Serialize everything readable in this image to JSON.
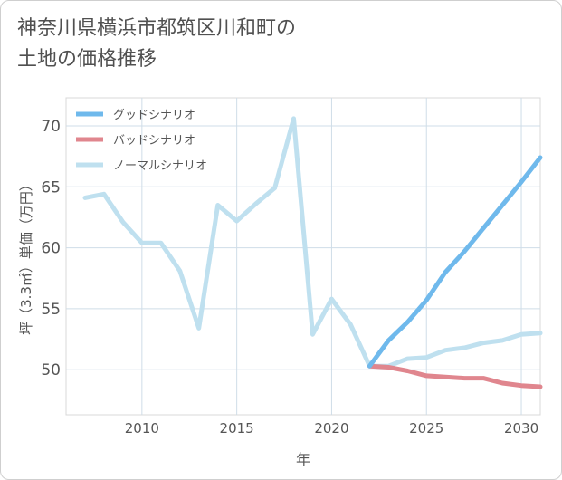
{
  "title_line1": "神奈川県横浜市都筑区川和町の",
  "title_line2": "土地の価格推移",
  "chart_data": {
    "type": "line",
    "title": "神奈川県横浜市都筑区川和町の土地の価格推移",
    "xlabel": "年",
    "ylabel": "坪（3.3㎡）単価（万円）",
    "xlim": [
      2006,
      2031
    ],
    "ylim": [
      46.3,
      72.3
    ],
    "xticks": [
      2010,
      2015,
      2020,
      2025,
      2030
    ],
    "yticks": [
      50,
      55,
      60,
      65,
      70
    ],
    "grid": true,
    "legend_position": "top-left",
    "series": [
      {
        "name": "グッドシナリオ",
        "color": "#6fb9ec",
        "x": [
          2022,
          2023,
          2024,
          2025,
          2026,
          2027,
          2028,
          2029,
          2030,
          2031
        ],
        "y": [
          50.3,
          52.4,
          53.9,
          55.7,
          58.0,
          59.7,
          61.6,
          63.5,
          65.4,
          67.4
        ]
      },
      {
        "name": "バッドシナリオ",
        "color": "#e0868e",
        "x": [
          2022,
          2023,
          2024,
          2025,
          2026,
          2027,
          2028,
          2029,
          2030,
          2031
        ],
        "y": [
          50.3,
          50.2,
          49.9,
          49.5,
          49.4,
          49.3,
          49.3,
          48.9,
          48.7,
          48.6
        ]
      },
      {
        "name": "ノーマルシナリオ",
        "color": "#bfe0ef",
        "x": [
          2007,
          2008,
          2009,
          2010,
          2011,
          2012,
          2013,
          2014,
          2015,
          2016,
          2017,
          2018,
          2019,
          2020,
          2021,
          2022,
          2023,
          2024,
          2025,
          2026,
          2027,
          2028,
          2029,
          2030,
          2031
        ],
        "y": [
          64.1,
          64.4,
          62.1,
          60.4,
          60.4,
          58.1,
          53.4,
          63.5,
          62.2,
          63.6,
          64.9,
          70.6,
          52.9,
          55.8,
          53.7,
          50.3,
          50.3,
          50.9,
          51.0,
          51.6,
          51.8,
          52.2,
          52.4,
          52.9,
          53.0
        ]
      }
    ]
  }
}
